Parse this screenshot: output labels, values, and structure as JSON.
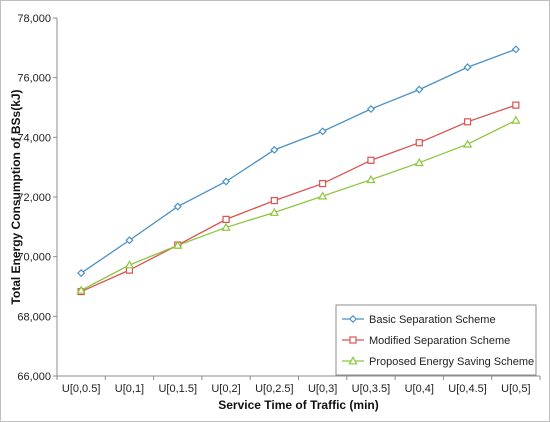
{
  "chart_data": {
    "type": "line",
    "title": "",
    "xlabel": "Service Time of Traffic (min)",
    "ylabel": "Total Energy Consumption of BSs(kJ)",
    "categories": [
      "U[0,0.5]",
      "U[0,1]",
      "U[0,1.5]",
      "U[0,2]",
      "U[0,2.5]",
      "U[0,3]",
      "U[0,3.5]",
      "U[0,4]",
      "U[0,4.5]",
      "U[0,5]"
    ],
    "ylim": [
      66000,
      78000
    ],
    "yticks": [
      66000,
      68000,
      70000,
      72000,
      74000,
      76000,
      78000
    ],
    "ytick_labels": [
      "66,000",
      "68,000",
      "70,000",
      "72,000",
      "74,000",
      "76,000",
      "78,000"
    ],
    "grid": false,
    "legend_position": "bottom-right",
    "series": [
      {
        "name": "Basic Separation Scheme",
        "color": "#4a90c8",
        "marker": "diamond",
        "values": [
          69450,
          70550,
          71680,
          72520,
          73580,
          74200,
          74950,
          75600,
          76350,
          76950
        ]
      },
      {
        "name": "Modified Separation Scheme",
        "color": "#d9534f",
        "marker": "square",
        "values": [
          68830,
          69550,
          70390,
          71250,
          71880,
          72450,
          73230,
          73820,
          74520,
          75080
        ]
      },
      {
        "name": "Proposed Energy Saving Scheme",
        "color": "#8dc63f",
        "marker": "triangle",
        "values": [
          68870,
          69720,
          70380,
          70980,
          71480,
          72030,
          72580,
          73150,
          73770,
          74570
        ]
      }
    ]
  }
}
